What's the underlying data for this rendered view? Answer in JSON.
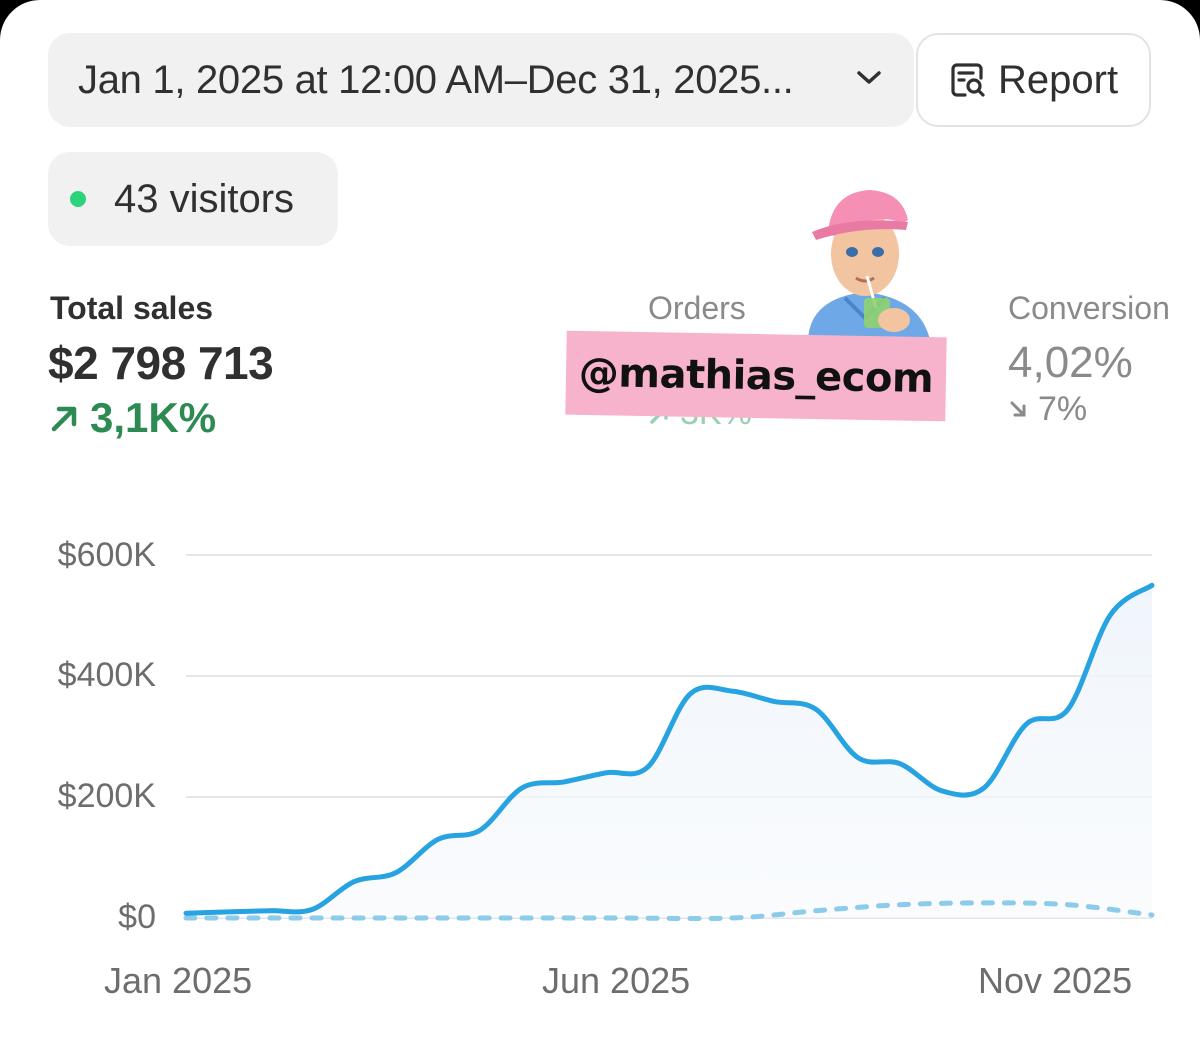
{
  "header": {
    "date_range_label": "Jan 1, 2025 at 12:00 AM–Dec 31, 2025...",
    "report_label": "Report"
  },
  "visitors": {
    "label": "43 visitors",
    "dot_color": "#2bd47a"
  },
  "metrics": [
    {
      "title": "Total sales",
      "value": "$2 798 713",
      "change": "3,1K%",
      "direction": "up"
    },
    {
      "title": "Orders",
      "value": "",
      "change": "3K%",
      "direction": "up"
    },
    {
      "title": "Conversion",
      "value": "4,02%",
      "change": "7%",
      "direction": "down"
    }
  ],
  "watermark": {
    "text": "@mathias_ecom"
  },
  "chart_data": {
    "type": "line",
    "title": "",
    "xlabel": "",
    "ylabel": "",
    "ylim": [
      0,
      600000
    ],
    "y_ticks": [
      "$600K",
      "$400K",
      "$200K",
      "$0"
    ],
    "x_tick_labels": [
      "Jan 2025",
      "Jun 2025",
      "Nov 2025"
    ],
    "grid": true,
    "series": [
      {
        "style": "solid",
        "color": "#26a3e0",
        "points": [
          {
            "x": "2025-01-01",
            "y": 8000
          },
          {
            "x": "2025-01-15",
            "y": 10000
          },
          {
            "x": "2025-01-29",
            "y": 12000
          },
          {
            "x": "2025-02-12",
            "y": 14000
          },
          {
            "x": "2025-02-26",
            "y": 60000
          },
          {
            "x": "2025-03-12",
            "y": 75000
          },
          {
            "x": "2025-03-26",
            "y": 130000
          },
          {
            "x": "2025-04-09",
            "y": 145000
          },
          {
            "x": "2025-04-23",
            "y": 215000
          },
          {
            "x": "2025-05-07",
            "y": 225000
          },
          {
            "x": "2025-05-21",
            "y": 240000
          },
          {
            "x": "2025-06-04",
            "y": 250000
          },
          {
            "x": "2025-06-18",
            "y": 370000
          },
          {
            "x": "2025-07-02",
            "y": 375000
          },
          {
            "x": "2025-07-16",
            "y": 358000
          },
          {
            "x": "2025-07-30",
            "y": 345000
          },
          {
            "x": "2025-08-13",
            "y": 265000
          },
          {
            "x": "2025-08-27",
            "y": 255000
          },
          {
            "x": "2025-09-10",
            "y": 210000
          },
          {
            "x": "2025-09-24",
            "y": 215000
          },
          {
            "x": "2025-10-08",
            "y": 320000
          },
          {
            "x": "2025-10-22",
            "y": 345000
          },
          {
            "x": "2025-11-05",
            "y": 500000
          },
          {
            "x": "2025-11-19",
            "y": 550000
          }
        ]
      },
      {
        "style": "dashed",
        "color": "#8ccbea",
        "points": [
          {
            "x": "2025-01-01",
            "y": 0
          },
          {
            "x": "2025-03-12",
            "y": 0
          },
          {
            "x": "2025-05-21",
            "y": 0
          },
          {
            "x": "2025-07-02",
            "y": 0
          },
          {
            "x": "2025-07-30",
            "y": 12000
          },
          {
            "x": "2025-08-27",
            "y": 22000
          },
          {
            "x": "2025-09-24",
            "y": 25000
          },
          {
            "x": "2025-10-22",
            "y": 22000
          },
          {
            "x": "2025-11-19",
            "y": 5000
          }
        ]
      }
    ]
  }
}
